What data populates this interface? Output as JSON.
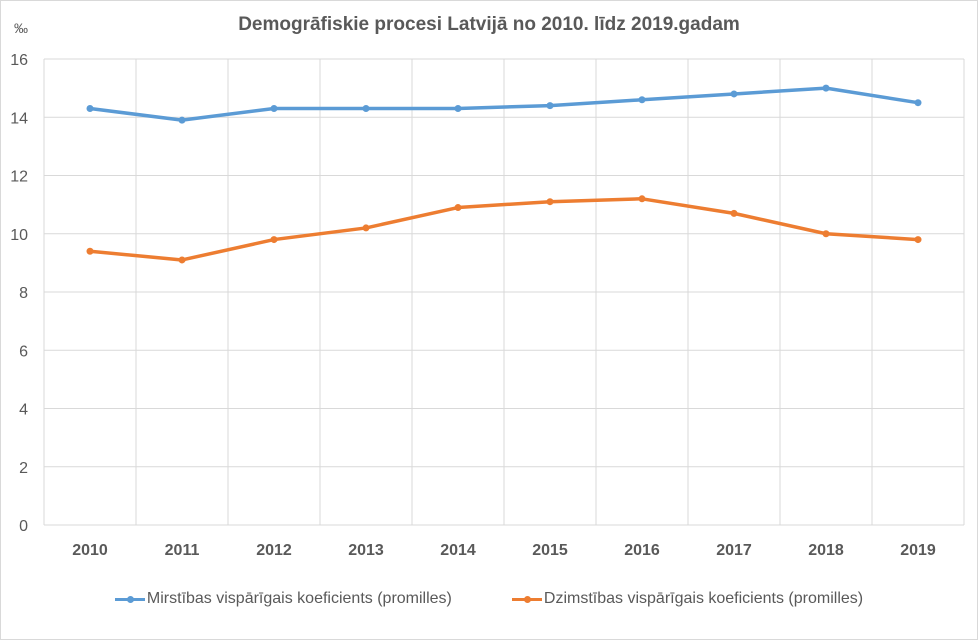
{
  "chart_data": {
    "type": "line",
    "title": "Demogrāfiskie procesi Latvijā no 2010. līdz 2019.gadam",
    "ylabel": "‰",
    "xlabel": "",
    "categories": [
      "2010",
      "2011",
      "2012",
      "2013",
      "2014",
      "2015",
      "2016",
      "2017",
      "2018",
      "2019"
    ],
    "ylim": [
      0,
      16
    ],
    "yticks": [
      "0",
      "2",
      "4",
      "6",
      "8",
      "10",
      "12",
      "14",
      "16"
    ],
    "grid": true,
    "legend_position": "bottom",
    "series": [
      {
        "name": "Mirstības vispārīgais koeficients (promilles)",
        "color": "#5b9bd5",
        "values": [
          14.3,
          13.9,
          14.3,
          14.3,
          14.3,
          14.4,
          14.6,
          14.8,
          15.0,
          14.5
        ]
      },
      {
        "name": "Dzimstības vispārīgais koeficients (promilles)",
        "color": "#ed7d31",
        "values": [
          9.4,
          9.1,
          9.8,
          10.2,
          10.9,
          11.1,
          11.2,
          10.7,
          10.0,
          9.8
        ]
      }
    ]
  }
}
